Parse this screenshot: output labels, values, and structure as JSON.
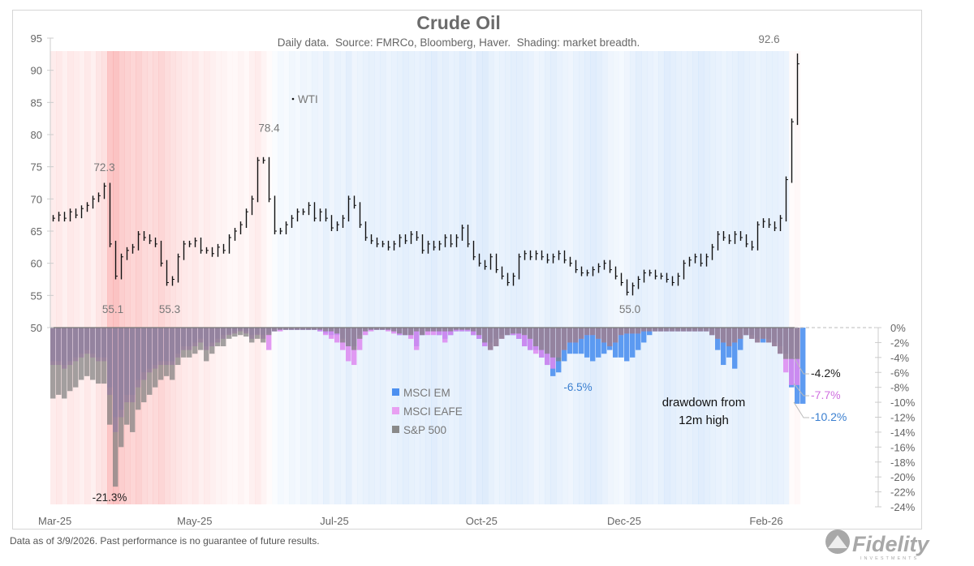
{
  "chart_data": {
    "type": "bar",
    "title": "Crude Oil",
    "subtitle": "Daily data.  Source: FMRCo, Bloomberg, Haver.  Shading: market breadth.",
    "footer": "Data as of 3/9/2026. Past performance is no guarantee of future results.",
    "logo_text": "Fidelity INVESTMENTS",
    "x_tick_labels": [
      "Mar-25",
      "May-25",
      "Jul-25",
      "Oct-25",
      "Dec-25",
      "Feb-26"
    ],
    "left_axis": {
      "ylim": [
        50,
        95
      ],
      "ticks": [
        "95",
        "90",
        "85",
        "80",
        "75",
        "70",
        "65",
        "60",
        "55",
        "50"
      ]
    },
    "right_axis": {
      "ylim": [
        -24,
        0
      ],
      "ticks": [
        "0%",
        "-2%",
        "-4%",
        "-6%",
        "-8%",
        "-10%",
        "-12%",
        "-14%",
        "-16%",
        "-18%",
        "-20%",
        "-22%",
        "-24%"
      ]
    },
    "wti": {
      "name": "WTI",
      "color": "#111111",
      "close": [
        67,
        67.5,
        67,
        68,
        67.5,
        68.5,
        69,
        70,
        70.5,
        72,
        63,
        58,
        61,
        62,
        62.5,
        64.5,
        64,
        63.5,
        63,
        60,
        57,
        57.5,
        61,
        63,
        63,
        63.5,
        62,
        62,
        61.5,
        62.5,
        62,
        64,
        65,
        66,
        68,
        70,
        76,
        76,
        70,
        65,
        65,
        66,
        67,
        68,
        68,
        69,
        67,
        68,
        67,
        65.5,
        66,
        67,
        70,
        69,
        66,
        64,
        63.5,
        63,
        63,
        62.5,
        63,
        64,
        63.5,
        64.5,
        64,
        62,
        63,
        62.5,
        63,
        64,
        63,
        64,
        65.5,
        63,
        61,
        60,
        59.5,
        61,
        59,
        58,
        57,
        58,
        61,
        61.5,
        61,
        61.5,
        61,
        60.5,
        61,
        61.5,
        60.5,
        60,
        59,
        58.5,
        58.5,
        59,
        59.5,
        60,
        59,
        58,
        57,
        55.5,
        56.5,
        57.5,
        58.5,
        58.5,
        58,
        58,
        57.5,
        57,
        58,
        60,
        60.5,
        61,
        60,
        61,
        62.5,
        64.5,
        64,
        63.5,
        64.5,
        64,
        63,
        62.5,
        66,
        66.5,
        66,
        65.5,
        67,
        73,
        82,
        91
      ],
      "annotations": [
        {
          "label": "72.3",
          "value": 72.3
        },
        {
          "label": "55.1",
          "value": 55.1
        },
        {
          "label": "55.3",
          "value": 55.3
        },
        {
          "label": "78.4",
          "value": 78.4
        },
        {
          "label": "55.0",
          "value": 55.0
        },
        {
          "label": "92.6",
          "value": 92.6
        }
      ]
    },
    "drawdown_title": "drawdown from 12m high",
    "series": [
      {
        "name": "MSCI EM",
        "color": "#4d90f0",
        "end_label": "-10.2%",
        "values": [
          -4.5,
          -4.5,
          -5,
          -4.5,
          -4,
          -3.5,
          -3,
          -3.5,
          -4,
          -4,
          -8,
          -12,
          -11,
          -9,
          -9,
          -7,
          -6,
          -5.5,
          -5,
          -4.5,
          -4.5,
          -4.5,
          -3.5,
          -2.5,
          -2.5,
          -2,
          -1.5,
          -2.5,
          -2,
          -1.5,
          -1,
          -0.8,
          -0.5,
          -0.3,
          -0.5,
          -1,
          -0.8,
          -1,
          -0.8,
          -0.5,
          -0.3,
          -0.3,
          -0.3,
          -0.3,
          -0.3,
          -0.3,
          -0.3,
          -0.5,
          -0.8,
          -1,
          -1,
          -1.5,
          -2.5,
          -2.5,
          -1,
          -0.5,
          -0.3,
          -0.3,
          -0.3,
          -0.3,
          -0.5,
          -1,
          -1,
          -1,
          -2.5,
          -1,
          -0.5,
          -0.5,
          -1,
          -1.5,
          -1,
          -0.5,
          -0.5,
          -0.5,
          -1,
          -1.5,
          -2.5,
          -2,
          -1.5,
          -1,
          -1,
          -1,
          -1.5,
          -2.5,
          -3,
          -3,
          -4,
          -5,
          -6.5,
          -6,
          -4.5,
          -3.5,
          -3.5,
          -3.5,
          -4,
          -4.5,
          -4,
          -3.5,
          -3,
          -4,
          -4,
          -4.5,
          -4,
          -3,
          -2,
          -1,
          -0.5,
          -0.5,
          -0.5,
          -0.5,
          -0.5,
          -0.5,
          -0.5,
          -0.5,
          -0.5,
          -0.5,
          -1,
          -3,
          -5,
          -4,
          -5.5,
          -3,
          -1,
          -1,
          -1.5,
          -2,
          -1.5,
          -2,
          -2.5,
          -3.5,
          -8,
          -10.2,
          -10.2
        ]
      },
      {
        "name": "MSCI EAFE",
        "color": "#dd88f0",
        "end_label": "-7.7%",
        "values": [
          -5,
          -5,
          -5.5,
          -5,
          -4.5,
          -4,
          -3.5,
          -4,
          -4.5,
          -4.5,
          -9,
          -14,
          -12,
          -10,
          -10,
          -8,
          -7,
          -6,
          -5.5,
          -5,
          -5,
          -5,
          -4,
          -3,
          -3,
          -2.5,
          -2,
          -3,
          -2.5,
          -2,
          -1.5,
          -1,
          -0.8,
          -0.5,
          -0.8,
          -1.5,
          -1,
          -1.5,
          -3,
          -0.5,
          -0.5,
          -0.3,
          -0.3,
          -0.3,
          -0.3,
          -0.3,
          -0.3,
          -0.5,
          -1,
          -1.5,
          -2,
          -3,
          -4.5,
          -5,
          -3,
          -1,
          -0.5,
          -0.3,
          -0.3,
          -0.5,
          -0.8,
          -1,
          -1,
          -1.5,
          -3,
          -1,
          -1,
          -1,
          -1,
          -2,
          -1,
          -0.5,
          -0.5,
          -0.5,
          -1,
          -1.5,
          -2.5,
          -3,
          -2.5,
          -1.5,
          -1,
          -1,
          -1.5,
          -2.5,
          -3,
          -3.5,
          -4,
          -5,
          -5.5,
          -4,
          -3,
          -2,
          -2,
          -1.5,
          -1,
          -1,
          -1.5,
          -2,
          -2.5,
          -2,
          -1,
          -0.8,
          -0.8,
          -0.8,
          -0.5,
          -0.5,
          -0.5,
          -0.5,
          -0.5,
          -0.5,
          -0.5,
          -0.5,
          -0.5,
          -0.5,
          -0.5,
          -0.5,
          -1,
          -1.5,
          -2,
          -2.5,
          -2,
          -1.5,
          -1,
          -1.5,
          -2,
          -1.5,
          -2,
          -2.5,
          -3.5,
          -6,
          -7.7,
          -7.7
        ]
      },
      {
        "name": "S&P 500",
        "color": "#808080",
        "end_label": "-4.2%",
        "values": [
          -9.5,
          -9,
          -9.5,
          -8.5,
          -8,
          -7,
          -6.5,
          -7,
          -7.5,
          -7.5,
          -13,
          -21.3,
          -16,
          -13,
          -14,
          -11,
          -10,
          -9,
          -8,
          -7,
          -6.5,
          -7,
          -5,
          -4,
          -4,
          -3.5,
          -3,
          -4.5,
          -3.5,
          -2.5,
          -2.5,
          -1.5,
          -1.2,
          -1,
          -1.2,
          -2,
          -1.5,
          -2,
          -1,
          -0.5,
          -0.3,
          -0.3,
          -0.3,
          -0.3,
          -0.3,
          -0.3,
          -0.3,
          -0.3,
          -0.5,
          -0.5,
          -0.8,
          -2,
          -2.5,
          -3,
          -1.5,
          -0.5,
          -0.3,
          -0.3,
          -0.3,
          -0.3,
          -0.5,
          -0.8,
          -1,
          -1,
          -0.5,
          -1,
          -0.5,
          -0.5,
          -0.5,
          -0.5,
          -0.5,
          -0.3,
          -0.3,
          -0.3,
          -0.5,
          -1,
          -2,
          -3,
          -2.5,
          -1.5,
          -1,
          -0.8,
          -0.8,
          -1,
          -1.5,
          -2.5,
          -3,
          -3.5,
          -4,
          -4.5,
          -3,
          -2,
          -2,
          -1.5,
          -1,
          -1,
          -1.5,
          -2,
          -2.5,
          -2,
          -1,
          -0.8,
          -0.8,
          -0.8,
          -0.5,
          -0.5,
          -0.5,
          -0.5,
          -0.5,
          -0.5,
          -0.5,
          -0.5,
          -0.5,
          -0.5,
          -0.5,
          -0.5,
          -1,
          -1.5,
          -2,
          -2.5,
          -2,
          -1.5,
          -1,
          -1.5,
          -2,
          -1.5,
          -2,
          -2.5,
          -3.5,
          -4.2,
          -4.2,
          -4.2
        ]
      }
    ],
    "drawdown_annotations": [
      {
        "label": "-21.3%",
        "color": "#222222"
      },
      {
        "label": "-6.5%",
        "color": "#3a7fd0"
      }
    ],
    "shading_breadth": [
      -0.25,
      -0.3,
      -0.2,
      -0.3,
      -0.25,
      -0.2,
      -0.3,
      -0.2,
      -0.35,
      -0.4,
      -0.75,
      -0.8,
      -0.65,
      -0.6,
      -0.55,
      -0.6,
      -0.5,
      -0.45,
      -0.5,
      -0.55,
      -0.45,
      -0.4,
      -0.35,
      -0.3,
      -0.25,
      -0.3,
      -0.2,
      -0.25,
      -0.2,
      -0.15,
      -0.15,
      -0.1,
      -0.1,
      -0.15,
      -0.1,
      -0.2,
      -0.25,
      -0.15,
      -0.05,
      0.1,
      0.2,
      0.15,
      0.25,
      0.2,
      0.3,
      0.25,
      0.35,
      0.3,
      0.45,
      0.3,
      0.4,
      0.35,
      0.5,
      0.3,
      0.35,
      0.4,
      0.45,
      0.4,
      0.45,
      0.35,
      0.4,
      0.45,
      0.5,
      0.45,
      0.4,
      0.45,
      0.5,
      0.55,
      0.45,
      0.5,
      0.4,
      0.45,
      0.55,
      0.5,
      0.4,
      0.55,
      0.6,
      0.45,
      0.35,
      0.4,
      0.45,
      0.5,
      0.5,
      0.45,
      0.4,
      0.3,
      0.35,
      0.45,
      0.5,
      0.4,
      0.35,
      0.3,
      0.4,
      0.45,
      0.5,
      0.55,
      0.5,
      0.4,
      0.3,
      0.25,
      0.2,
      0.3,
      0.4,
      0.5,
      0.45,
      0.4,
      0.35,
      0.45,
      0.55,
      0.5,
      0.45,
      0.4,
      0.45,
      0.5,
      0.55,
      0.5,
      0.45,
      0.4,
      0.35,
      0.4,
      0.45,
      0.5,
      0.45,
      0.4,
      0.35,
      0.4,
      0.45,
      0.45,
      0.4,
      0.35,
      -0.05,
      -0.1
    ],
    "grid": false
  }
}
